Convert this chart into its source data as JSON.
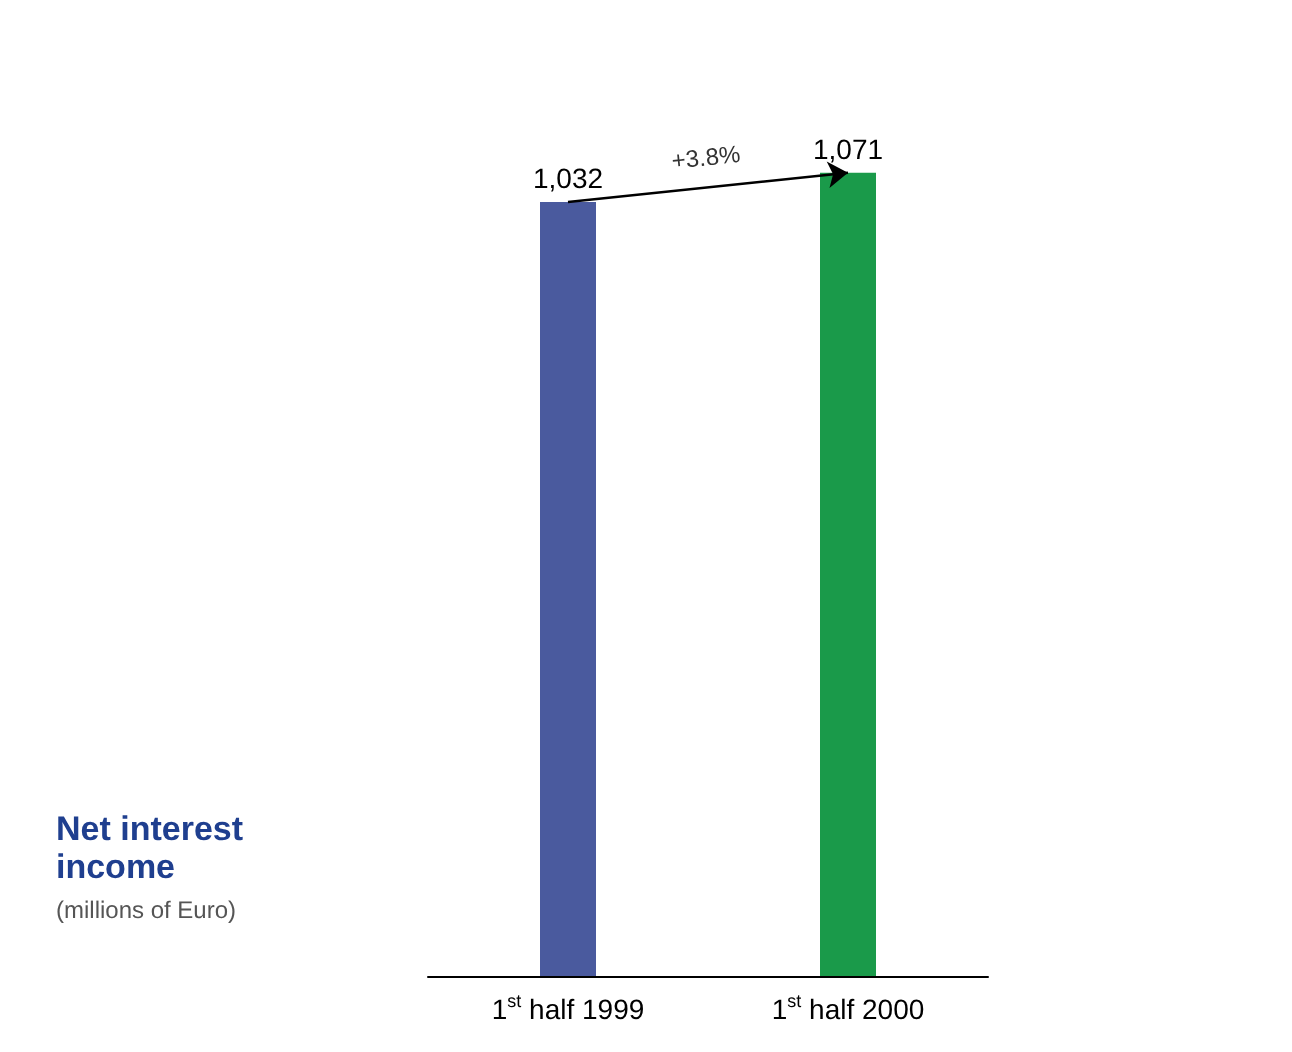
{
  "chart_data": {
    "type": "bar",
    "title": "Net interest income",
    "subtitle": "(millions of Euro)",
    "categories": [
      "1$^{st}$ half 1999",
      "1$^{st}$ half 2000"
    ],
    "values": [
      1032,
      1071
    ],
    "value_labels": [
      "1,032",
      "1,071"
    ],
    "colors": [
      "#4a5a9e",
      "#1a9a4a"
    ],
    "annotations": [
      "+3.8%"
    ],
    "tick_labels": "x"
  }
}
